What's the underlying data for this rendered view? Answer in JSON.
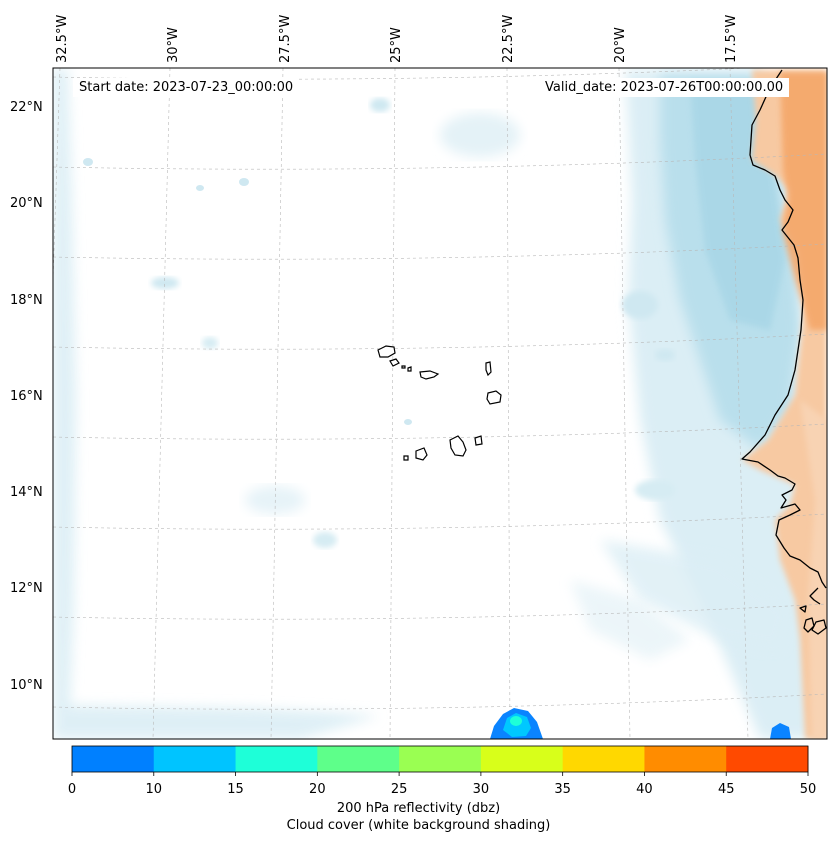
{
  "annotations": {
    "start": "Start date: 2023-07-23_00:00:00",
    "valid": "Valid_date: 2023-07-26T00:00:00.00"
  },
  "map": {
    "lon_labels": [
      "32.5°W",
      "30°W",
      "27.5°W",
      "25°W",
      "22.5°W",
      "20°W",
      "17.5°W"
    ],
    "lat_labels": [
      "22°N",
      "20°N",
      "18°N",
      "16°N",
      "14°N",
      "12°N",
      "10°N"
    ],
    "colors": {
      "cloud_light": "#dbeef5",
      "cloud_mid": "#b9dfec",
      "cloud_dark": "#a7d6e6",
      "land_warm": "#f7c9a2",
      "land_hot": "#f4a566",
      "echo_blue": "#0a84ff",
      "echo_cyan": "#00c8ff"
    }
  },
  "colorbar": {
    "ticks": [
      "0",
      "10",
      "15",
      "20",
      "25",
      "30",
      "35",
      "40",
      "45",
      "50"
    ],
    "colors": [
      "#0080ff",
      "#00c4ff",
      "#1effd8",
      "#5eff8a",
      "#9aff52",
      "#d8ff1a",
      "#ffd800",
      "#ff8c00",
      "#ff4a00"
    ],
    "label1": "200 hPa reflectivity (dbz)",
    "label2": "Cloud cover (white background shading)"
  }
}
